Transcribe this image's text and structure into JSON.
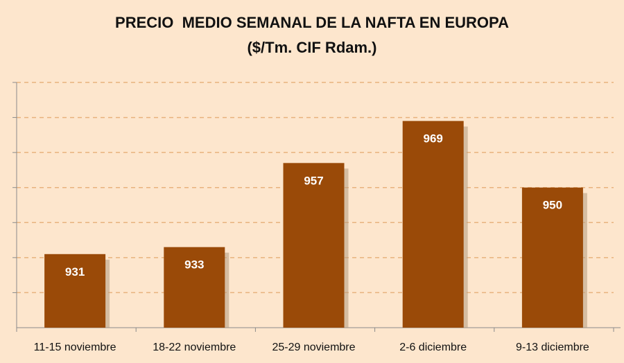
{
  "chart_data": {
    "type": "bar",
    "title": "PRECIO  MEDIO SEMANAL DE LA NAFTA EN EUROPA",
    "subtitle": "($/Tm. CIF Rdam.)",
    "categories": [
      "11-15 noviembre",
      "18-22 noviembre",
      "25-29 noviembre",
      "2-6 diciembre",
      "9-13 diciembre"
    ],
    "values": [
      931,
      933,
      957,
      969,
      950
    ],
    "data_labels": [
      "931",
      "933",
      "957",
      "969",
      "950"
    ],
    "xlabel": "",
    "ylabel": "",
    "ylim": [
      910,
      980
    ],
    "y_gridlines": [
      920,
      930,
      940,
      950,
      960,
      970,
      980
    ],
    "grid": true,
    "legend": "none",
    "colors": {
      "bar": "#9a4a08",
      "bar_shadow": "#b59a80",
      "grid": "#e8b27d",
      "axis": "#8a8a8a",
      "background": "#fde6cd"
    }
  }
}
